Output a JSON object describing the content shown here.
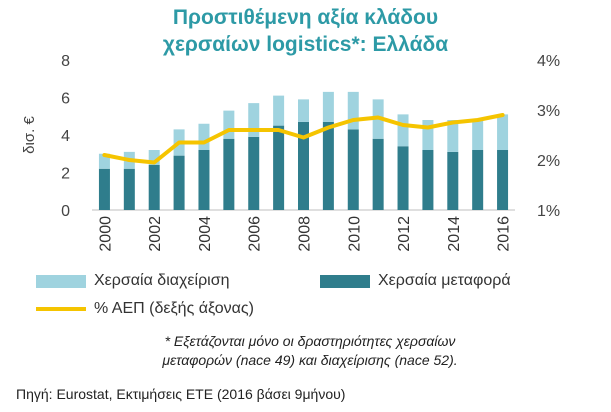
{
  "colors": {
    "title": "#2d9aa6",
    "management": "#9fd3df",
    "transport": "#2f7d8c",
    "gdp_line": "#f5c400"
  },
  "chart_data": {
    "type": "bar+line",
    "title": [
      "Προστιθέμενη αξία κλάδου",
      "χερσαίων logistics*: Ελλάδα"
    ],
    "ylabel": "δισ. €",
    "ylim": [
      0,
      8
    ],
    "y_ticks": [
      "0",
      "2",
      "4",
      "6",
      "8"
    ],
    "y2lim": [
      1,
      4
    ],
    "y2_ticks": [
      "1%",
      "2%",
      "3%",
      "4%"
    ],
    "x": [
      2000,
      2001,
      2002,
      2003,
      2004,
      2005,
      2006,
      2007,
      2008,
      2009,
      2010,
      2011,
      2012,
      2013,
      2014,
      2015,
      2016
    ],
    "x_tick_labels": [
      "2000",
      "2002",
      "2004",
      "2006",
      "2008",
      "2010",
      "2012",
      "2014",
      "2016"
    ],
    "stacked": true,
    "series": [
      {
        "name": "Χερσαία μεταφορά",
        "kind": "bar",
        "values": [
          2.2,
          2.2,
          2.4,
          2.9,
          3.2,
          3.8,
          3.9,
          4.5,
          4.7,
          4.7,
          4.3,
          3.8,
          3.4,
          3.2,
          3.1,
          3.2,
          3.2
        ]
      },
      {
        "name": "Χερσαία διαχείριση",
        "kind": "bar",
        "values": [
          0.8,
          0.9,
          0.8,
          1.4,
          1.4,
          1.5,
          1.8,
          1.6,
          1.2,
          1.6,
          2.0,
          2.1,
          1.7,
          1.6,
          1.7,
          1.6,
          1.9
        ]
      },
      {
        "name": "% ΑΕΠ (δεξής άξονας)",
        "kind": "line",
        "axis": "right",
        "values": [
          2.1,
          2.0,
          1.95,
          2.35,
          2.35,
          2.6,
          2.6,
          2.6,
          2.45,
          2.65,
          2.8,
          2.85,
          2.7,
          2.65,
          2.75,
          2.8,
          2.9
        ]
      }
    ]
  },
  "legend": {
    "management": "Χερσαία διαχείριση",
    "transport": "Χερσαία μεταφορά",
    "gdp": "% ΑΕΠ (δεξής άξονας)"
  },
  "note": {
    "line1": "* Εξετάζονται μόνο οι δραστηριότητες χερσαίων",
    "line2": "μεταφορών (nace 49) και διαχείρισης (nace 52)."
  },
  "source": "Πηγή: Eurostat, Εκτιμήσεις ΕΤΕ (2016 βάσει 9μήνου)"
}
